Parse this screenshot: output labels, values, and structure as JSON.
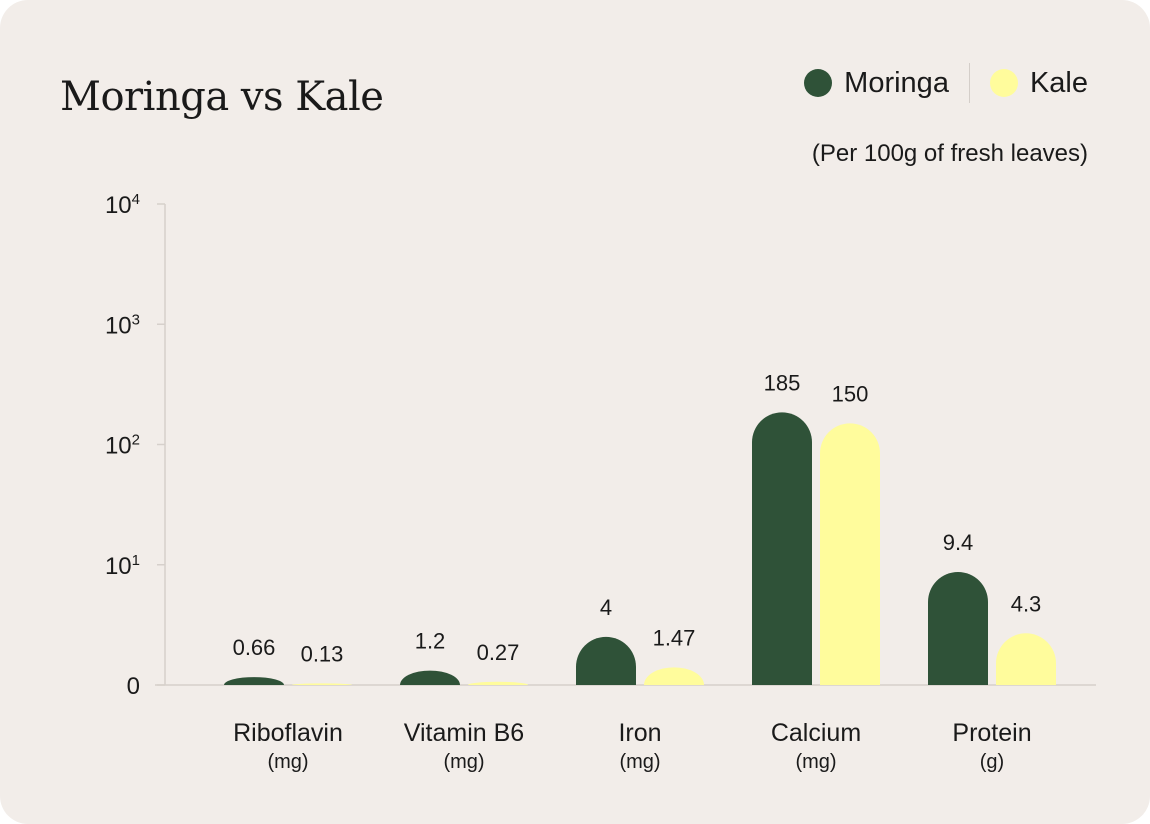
{
  "title": "Moringa vs Kale",
  "subtitle": "(Per 100g of fresh leaves)",
  "legend": [
    {
      "name": "Moringa",
      "color": "#2f5238"
    },
    {
      "name": "Kale",
      "color": "#fffc9c"
    }
  ],
  "chart_data": {
    "type": "bar",
    "title": "Moringa vs Kale",
    "subtitle": "(Per 100g of fresh leaves)",
    "scale": "log",
    "ylim": [
      0,
      10000
    ],
    "y_ticks": [
      {
        "value": 0,
        "label": "0",
        "sup": ""
      },
      {
        "value": 10,
        "label": "10",
        "sup": "1"
      },
      {
        "value": 100,
        "label": "10",
        "sup": "2"
      },
      {
        "value": 1000,
        "label": "10",
        "sup": "3"
      },
      {
        "value": 10000,
        "label": "10",
        "sup": "4"
      }
    ],
    "categories": [
      {
        "name": "Riboflavin",
        "unit": "(mg)"
      },
      {
        "name": "Vitamin B6",
        "unit": "(mg)"
      },
      {
        "name": "Iron",
        "unit": "(mg)"
      },
      {
        "name": "Calcium",
        "unit": "(mg)"
      },
      {
        "name": "Protein",
        "unit": "(g)"
      }
    ],
    "series": [
      {
        "name": "Moringa",
        "color": "#2f5238",
        "values": [
          0.66,
          1.2,
          4,
          185,
          9.4
        ],
        "labels": [
          "0.66",
          "1.2",
          "4",
          "185",
          "9.4"
        ]
      },
      {
        "name": "Kale",
        "color": "#fffc9c",
        "values": [
          0.13,
          0.27,
          1.47,
          150,
          4.3
        ],
        "labels": [
          "0.13",
          "0.27",
          "1.47",
          "150",
          "4.3"
        ]
      }
    ],
    "grid": false,
    "legend_position": "top-right"
  }
}
